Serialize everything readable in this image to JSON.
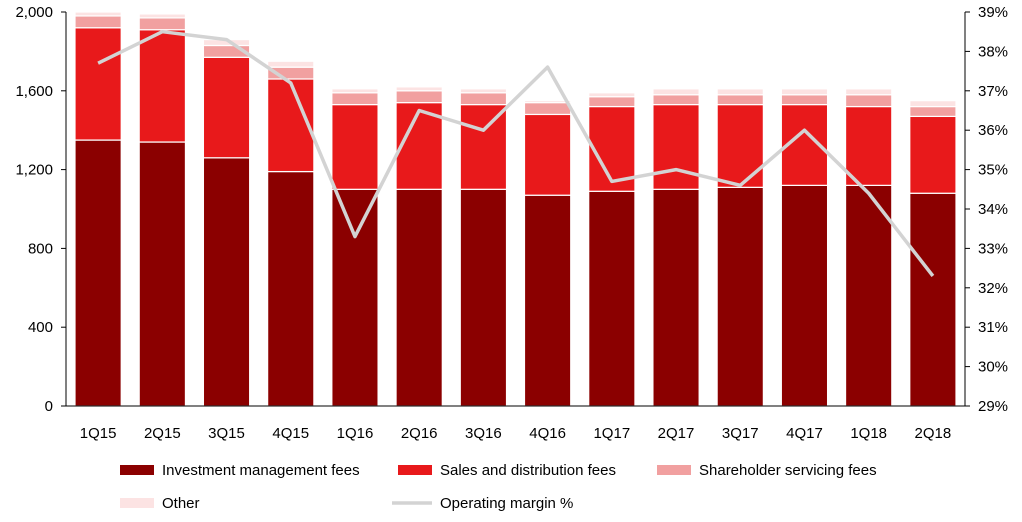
{
  "chart_data": {
    "type": "bar",
    "stacked": true,
    "categories": [
      "1Q15",
      "2Q15",
      "3Q15",
      "4Q15",
      "1Q16",
      "2Q16",
      "3Q16",
      "4Q16",
      "1Q17",
      "2Q17",
      "3Q17",
      "4Q17",
      "1Q18",
      "2Q18"
    ],
    "series": [
      {
        "name": "Investment management fees",
        "color": "#8B0000",
        "values": [
          1350,
          1340,
          1260,
          1190,
          1100,
          1100,
          1100,
          1070,
          1090,
          1100,
          1110,
          1120,
          1120,
          1080
        ]
      },
      {
        "name": "Sales and distribution fees",
        "color": "#E8191B",
        "values": [
          570,
          570,
          510,
          470,
          430,
          440,
          430,
          410,
          430,
          430,
          420,
          410,
          400,
          390
        ]
      },
      {
        "name": "Shareholder servicing fees",
        "color": "#F1A0A0",
        "values": [
          60,
          60,
          60,
          60,
          60,
          60,
          60,
          60,
          50,
          50,
          50,
          50,
          60,
          50
        ]
      },
      {
        "name": "Other",
        "color": "#FCE3E3",
        "values": [
          20,
          20,
          30,
          30,
          20,
          20,
          20,
          10,
          20,
          30,
          30,
          30,
          30,
          30
        ]
      }
    ],
    "line": {
      "name": "Operating margin %",
      "color": "#D3D3D3",
      "values": [
        37.7,
        38.5,
        38.3,
        37.2,
        33.3,
        36.5,
        36.0,
        37.6,
        34.7,
        35.0,
        34.6,
        36.0,
        34.4,
        32.3
      ]
    },
    "ylim": [
      0,
      2000
    ],
    "yticks": [
      "0",
      "400",
      "800",
      "1,200",
      "1,600",
      "2,000"
    ],
    "ytick_values": [
      0,
      400,
      800,
      1200,
      1600,
      2000
    ],
    "y2lim": [
      29,
      39
    ],
    "y2ticks": [
      "29%",
      "30%",
      "31%",
      "32%",
      "33%",
      "34%",
      "35%",
      "36%",
      "37%",
      "38%",
      "39%"
    ],
    "y2tick_values": [
      29,
      30,
      31,
      32,
      33,
      34,
      35,
      36,
      37,
      38,
      39
    ],
    "legend": [
      {
        "label": "Investment management fees",
        "kind": "bar",
        "color": "#8B0000"
      },
      {
        "label": "Sales and distribution fees",
        "kind": "bar",
        "color": "#E8191B"
      },
      {
        "label": "Shareholder servicing fees",
        "kind": "bar",
        "color": "#F1A0A0"
      },
      {
        "label": "Other",
        "kind": "bar",
        "color": "#FCE3E3"
      },
      {
        "label": "Operating margin %",
        "kind": "line",
        "color": "#D3D3D3"
      }
    ],
    "legend_position": "bottom"
  }
}
